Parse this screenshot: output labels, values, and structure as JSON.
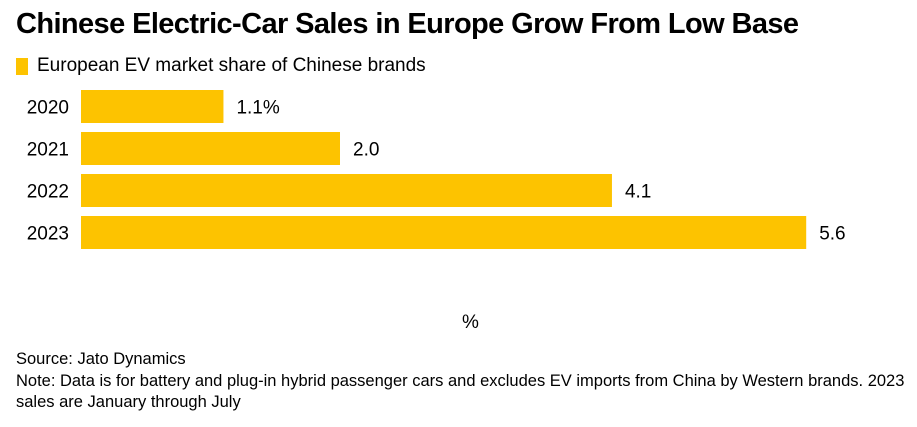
{
  "chart_data": {
    "type": "bar",
    "orientation": "horizontal",
    "title": "Chinese Electric-Car Sales in Europe Grow From Low Base",
    "legend": [
      {
        "label": "European EV market share of Chinese brands",
        "color": "#FDC300"
      }
    ],
    "legend_placement": "top-left",
    "categories": [
      "2020",
      "2021",
      "2022",
      "2023"
    ],
    "series": [
      {
        "name": "European EV market share of Chinese brands",
        "values": [
          1.1,
          2.0,
          4.1,
          5.6
        ],
        "color": "#FDC300"
      }
    ],
    "data_labels": [
      "1.1%",
      "2.0",
      "4.1",
      "5.6"
    ],
    "xlabel": "%",
    "ylabel": "",
    "xlim": [
      0,
      5.8
    ],
    "grid": false
  },
  "footer": {
    "source": "Source: Jato Dynamics",
    "note": "Note: Data is for battery and plug-in hybrid passenger cars and excludes EV imports from China by Western brands. 2023 sales are January through July"
  }
}
